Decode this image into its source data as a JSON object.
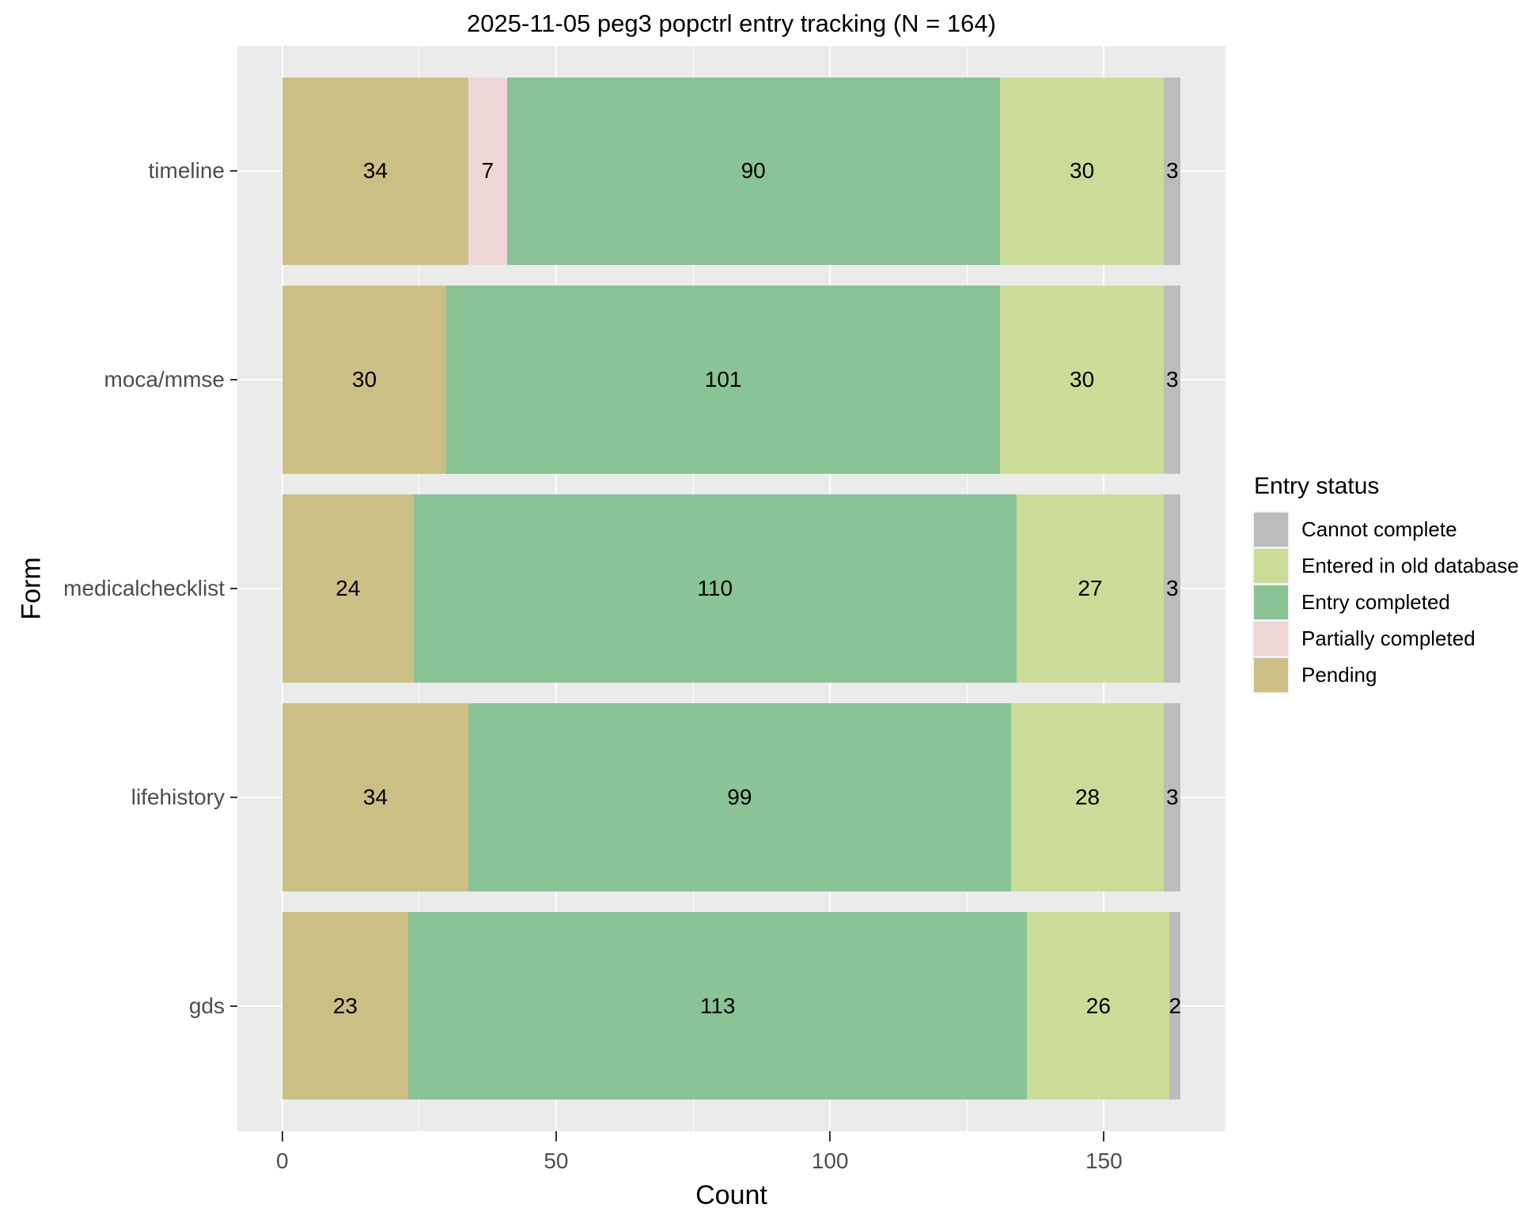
{
  "title": "2025-11-05 peg3 popctrl entry tracking (N = 164)",
  "chart_data": {
    "type": "bar",
    "orientation": "horizontal",
    "stacked": true,
    "title": "2025-11-05 peg3 popctrl entry tracking (N = 164)",
    "xlabel": "Count",
    "ylabel": "Form",
    "n_total": 164,
    "grid": true,
    "categories": [
      "timeline",
      "moca/mmse",
      "medicalchecklist",
      "lifehistory",
      "gds"
    ],
    "series": [
      {
        "name": "Pending",
        "color": "#CBBF85",
        "values": [
          34,
          30,
          24,
          34,
          23
        ]
      },
      {
        "name": "Partially completed",
        "color": "#F0D6D6",
        "values": [
          7,
          0,
          0,
          0,
          0
        ]
      },
      {
        "name": "Entry completed",
        "color": "#8AC396",
        "values": [
          90,
          101,
          110,
          99,
          113
        ]
      },
      {
        "name": "Entered in old database",
        "color": "#CADC97",
        "values": [
          30,
          30,
          27,
          28,
          26
        ]
      },
      {
        "name": "Cannot complete",
        "color": "#BCBCBC",
        "values": [
          3,
          3,
          3,
          3,
          2
        ]
      }
    ],
    "x_axis": {
      "ticks": [
        0,
        50,
        100,
        150
      ],
      "minor_ticks": [
        25,
        75,
        125
      ],
      "data_max": 164
    },
    "legend": {
      "title": "Entry status",
      "position": "right",
      "entries": [
        {
          "label": "Cannot complete",
          "color": "#BCBCBC"
        },
        {
          "label": "Entered in old database",
          "color": "#CADC97"
        },
        {
          "label": "Entry completed",
          "color": "#8AC396"
        },
        {
          "label": "Partially completed",
          "color": "#F0D6D6"
        },
        {
          "label": "Pending",
          "color": "#CBBF85"
        }
      ]
    },
    "style": {
      "panel_bg": "#EBEBEB",
      "grid_color": "#FFFFFF",
      "axis_text_color": "#4D4D4D",
      "tick_color": "#333333",
      "legend_key_bg": "#F2F2F2"
    }
  }
}
